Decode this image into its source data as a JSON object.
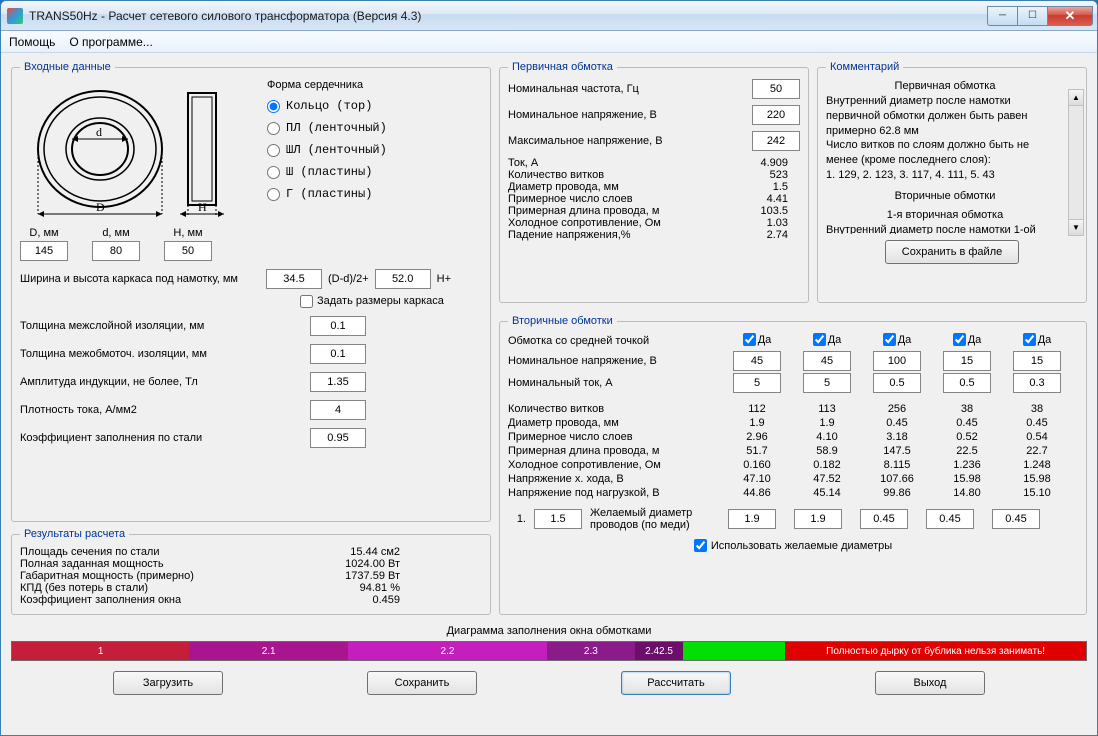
{
  "window": {
    "title": "TRANS50Hz - Расчет сетевого силового трансформатора (Версия 4.3)"
  },
  "menu": {
    "help": "Помощь",
    "about": "О программе..."
  },
  "input": {
    "legend": "Входные данные",
    "core_form_label": "Форма сердечника",
    "core_options": {
      "ring": "Кольцо (тор)",
      "pl": "ПЛ  (ленточный)",
      "shl": "ШЛ  (ленточный)",
      "sh": "Ш  (пластины)",
      "g": "Г  (пластины)"
    },
    "core_selected": "ring",
    "D_label": "D, мм",
    "D": "145",
    "d_label": "d, мм",
    "d": "80",
    "H_label": "H, мм",
    "H": "50",
    "frame_label": "Ширина и высота каркаса под намотку, мм",
    "frame_w": "34.5",
    "frame_w_suffix": "(D-d)/2+",
    "frame_h": "52.0",
    "frame_h_suffix": "H+",
    "set_frame_label": "Задать размеры каркаса",
    "interlayer_label": "Толщина межслойной изоляции, мм",
    "interlayer": "0.1",
    "interwinding_label": "Толщина межобмоточ. изоляции, мм",
    "interwinding": "0.1",
    "induction_label": "Амплитуда индукции, не более, Тл",
    "induction": "1.35",
    "current_density_label": "Плотность тока, А/мм2",
    "current_density": "4",
    "steel_fill_label": "Коэффициент заполнения по стали",
    "steel_fill": "0.95"
  },
  "results": {
    "legend": "Результаты расчета",
    "rows": [
      {
        "l": "Площадь сечения по стали",
        "v": "15.44 см2"
      },
      {
        "l": "Полная заданная мощность",
        "v": "1024.00 Вт"
      },
      {
        "l": "Габаритная мощность (примерно)",
        "v": "1737.59 Вт"
      },
      {
        "l": "КПД (без потерь в стали)",
        "v": "94.81 %"
      },
      {
        "l": "Коэффициент заполнения окна",
        "v": "0.459"
      }
    ]
  },
  "primary": {
    "legend": "Первичная обмотка",
    "freq_label": "Номинальная частота, Гц",
    "freq": "50",
    "voltage_label": "Номинальное напряжение, В",
    "voltage": "220",
    "max_voltage_label": "Максимальное напряжение, В",
    "max_voltage": "242",
    "outputs": [
      {
        "l": "Ток, А",
        "v": "4.909"
      },
      {
        "l": "Количество витков",
        "v": "523"
      },
      {
        "l": "Диаметр провода, мм",
        "v": "1.5"
      },
      {
        "l": "Примерное число слоев",
        "v": "4.41"
      },
      {
        "l": "Примерная длина провода, м",
        "v": "103.5"
      },
      {
        "l": "Холодное сопротивление, Ом",
        "v": "1.03"
      },
      {
        "l": "Падение напряжения,%",
        "v": "2.74"
      }
    ]
  },
  "comment": {
    "legend": "Комментарий",
    "heading1": "Первичная обмотка",
    "body1": "Внутренний диаметр после намотки первичной обмотки должен быть равен примерно 62.8 мм",
    "body2": "Число витков по слоям должно быть не менее (кроме последнего слоя):",
    "body3": "1. 129,  2. 123,  3. 117,  4. 111,  5. 43",
    "heading2": "Вторичные обмотки",
    "sub2": "1-я вторичная обмотка",
    "body4": "Внутренний диаметр после намотки 1-ой",
    "save_btn": "Сохранить в файле"
  },
  "secondary": {
    "legend": "Вторичные обмотки",
    "midpoint_label": "Обмотка со средней точкой",
    "yes": "Да",
    "voltage_label": "Номинальное напряжение, В",
    "voltage": [
      "45",
      "45",
      "100",
      "15",
      "15"
    ],
    "current_label": "Номинальный ток, А",
    "current": [
      "5",
      "5",
      "0.5",
      "0.5",
      "0.3"
    ],
    "out_rows": [
      {
        "l": "Количество витков",
        "v": [
          "112",
          "113",
          "256",
          "38",
          "38"
        ]
      },
      {
        "l": "Диаметр провода, мм",
        "v": [
          "1.9",
          "1.9",
          "0.45",
          "0.45",
          "0.45"
        ]
      },
      {
        "l": "Примерное число слоев",
        "v": [
          "2.96",
          "4.10",
          "3.18",
          "0.52",
          "0.54"
        ]
      },
      {
        "l": "Примерная длина провода, м",
        "v": [
          "51.7",
          "58.9",
          "147.5",
          "22.5",
          "22.7"
        ]
      },
      {
        "l": "Холодное сопротивление, Ом",
        "v": [
          "0.160",
          "0.182",
          "8.115",
          "1.236",
          "1.248"
        ]
      },
      {
        "l": "Напряжение х. хода, В",
        "v": [
          "47.10",
          "47.52",
          "107.66",
          "15.98",
          "15.98"
        ]
      },
      {
        "l": "Напряжение под нагрузкой, В",
        "v": [
          "44.86",
          "45.14",
          "99.86",
          "14.80",
          "15.10"
        ]
      }
    ],
    "desired_num": "1.",
    "desired_first": "1.5",
    "desired_label": "Желаемый диаметр проводов  (по меди)",
    "desired": [
      "1.9",
      "1.9",
      "0.45",
      "0.45",
      "0.45"
    ],
    "use_desired_label": "Использовать желаемые диаметры"
  },
  "fill_diagram": {
    "label": "Диаграмма заполнения окна обмотками",
    "segments": [
      {
        "label": "1",
        "color": "#c41e3a",
        "width": 16.5
      },
      {
        "label": "2.1",
        "color": "#a8158f",
        "width": 14.8
      },
      {
        "label": "2.2",
        "color": "#c41ebc",
        "width": 18.5
      },
      {
        "label": "2.3",
        "color": "#8b1a8b",
        "width": 8.2
      },
      {
        "label": "2.42.5",
        "color": "#6b0f6b",
        "width": 4.5
      },
      {
        "label": "",
        "color": "#00e000",
        "width": 9.5
      },
      {
        "label": "Полностью дырку от бублика нельзя занимать!",
        "color": "#e00000",
        "width": 28.0
      }
    ]
  },
  "buttons": {
    "load": "Загрузить",
    "save": "Сохранить",
    "calc": "Рассчитать",
    "exit": "Выход"
  },
  "diagram_labels": {
    "D": "D",
    "d": "d",
    "H": "H"
  }
}
